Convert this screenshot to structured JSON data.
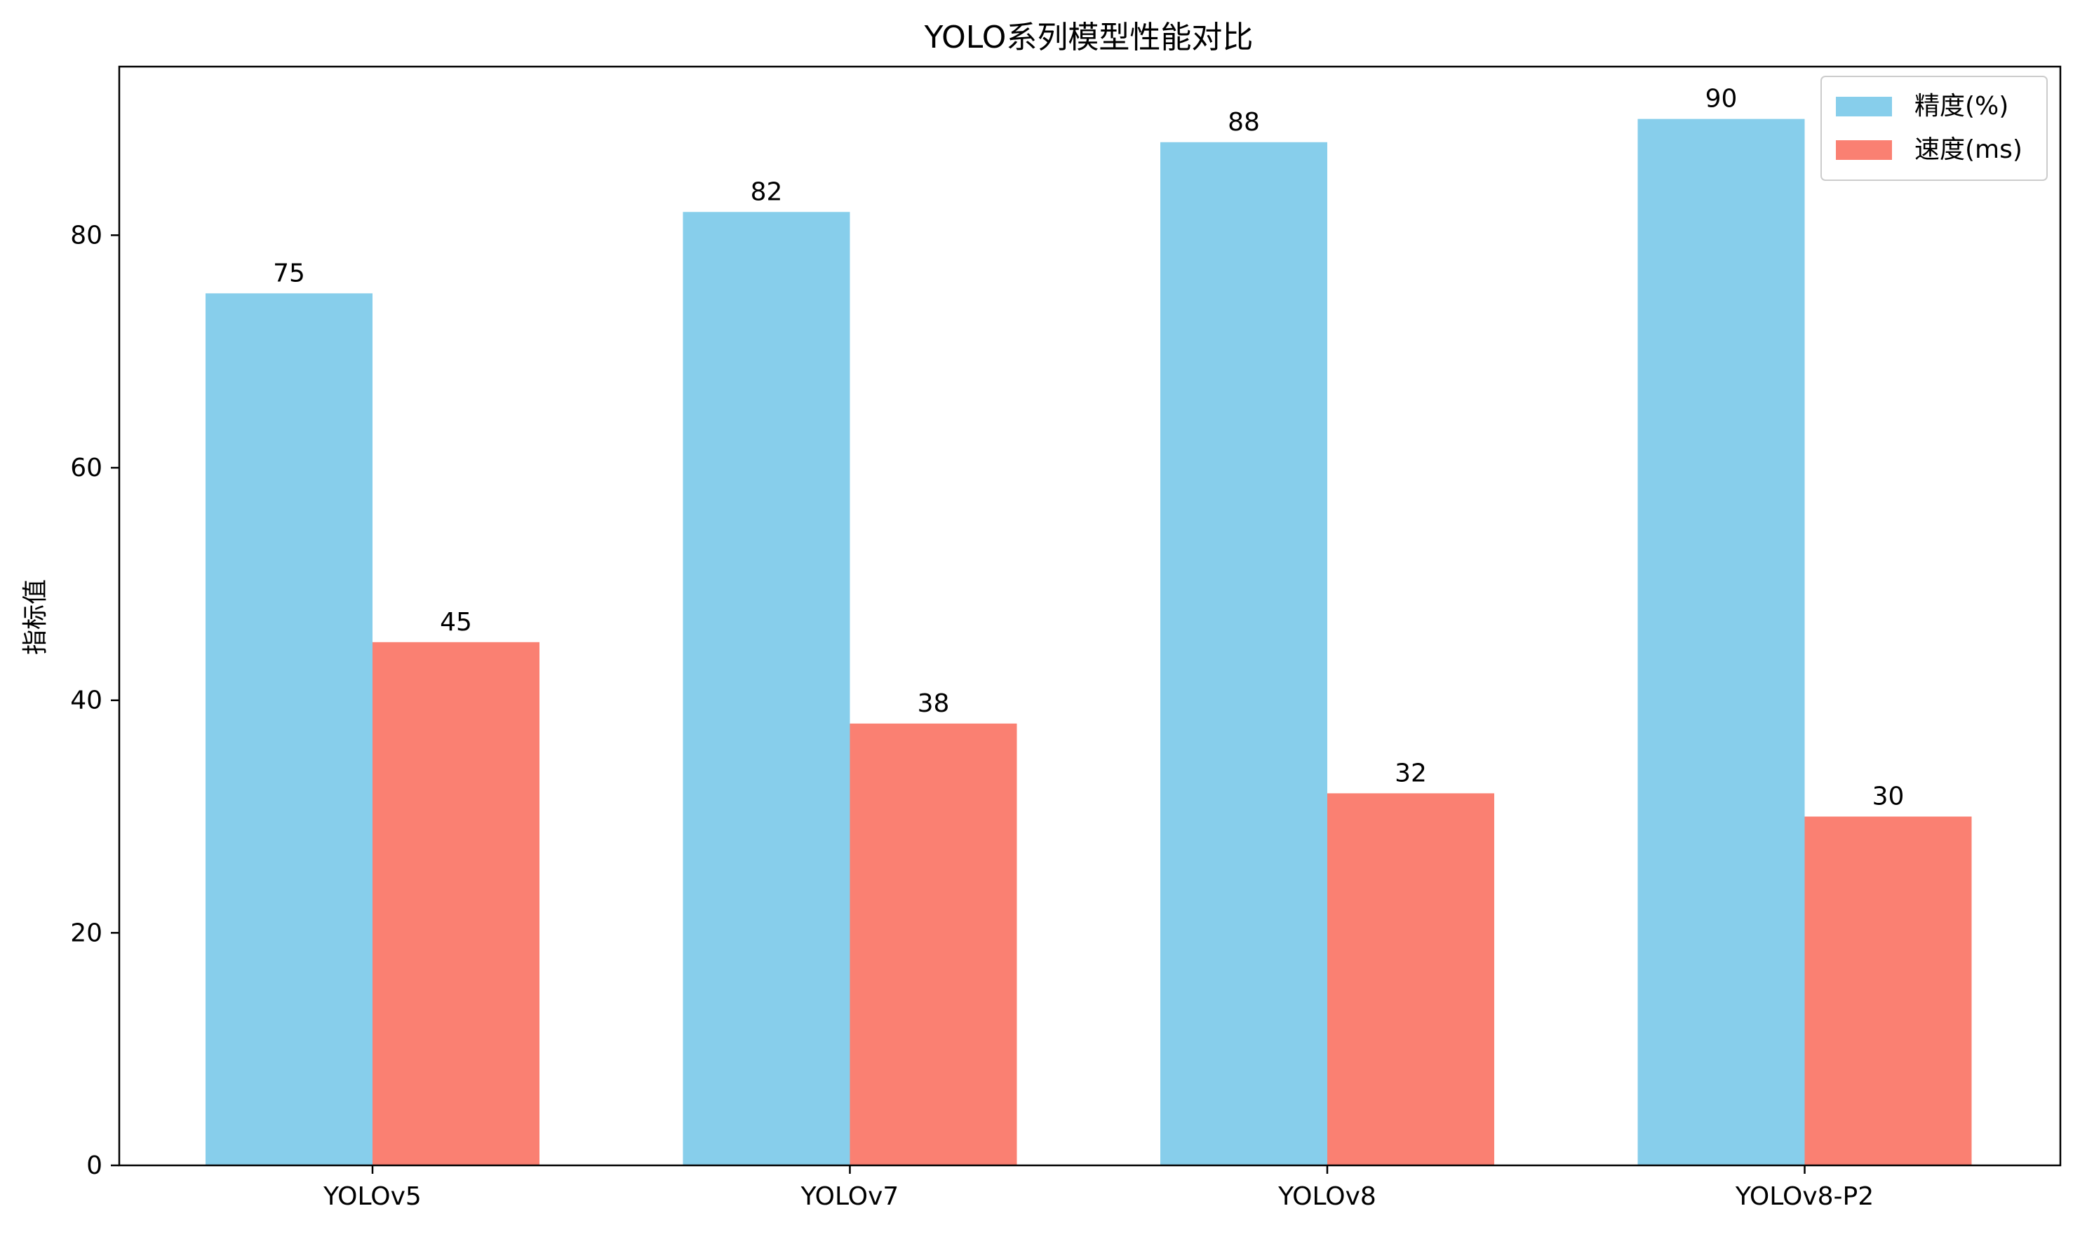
{
  "chart_data": {
    "type": "bar",
    "title": "YOLO系列模型性能对比",
    "xlabel": "",
    "ylabel": "指标值",
    "categories": [
      "YOLOv5",
      "YOLOv7",
      "YOLOv8",
      "YOLOv8-P2"
    ],
    "series": [
      {
        "name": "精度(%)",
        "values": [
          75,
          82,
          88,
          90
        ],
        "color": "#87CEEB"
      },
      {
        "name": "速度(ms)",
        "values": [
          45,
          38,
          32,
          30
        ],
        "color": "#FA8072"
      }
    ],
    "ylim": [
      0,
      94.5
    ],
    "yticks": [
      0,
      20,
      40,
      60,
      80
    ],
    "grid": false,
    "legend_position": "top-right",
    "show_data_labels": true
  }
}
